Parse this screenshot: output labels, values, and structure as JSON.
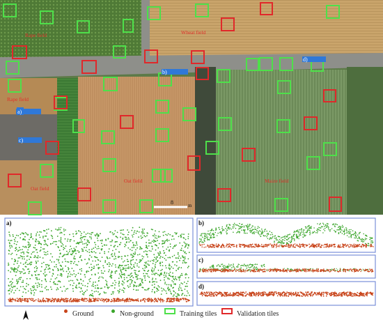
{
  "map": {
    "field_labels": {
      "top_left": "Rape field",
      "top_right": "Wheat field",
      "left_middle": "Rape field",
      "center": "Oat field",
      "right": "Maize field",
      "bottom_left": "Oat field"
    },
    "scale_label": "8",
    "scale_unit": "m",
    "callouts": [
      "a)",
      "b)",
      "c)",
      "d)"
    ]
  },
  "panels": {
    "a": {
      "label": "a)"
    },
    "b": {
      "label": "b)"
    },
    "c": {
      "label": "c)"
    },
    "d": {
      "label": "d)"
    }
  },
  "legend": {
    "ground": "Ground",
    "non_ground": "Non-ground",
    "training": "Training  tiles",
    "validation": "Validation tiles"
  },
  "colors": {
    "ground": "#c8441a",
    "non_ground": "#3aa52a",
    "training_border": "#4ee04a",
    "validation_border": "#e0282a",
    "callout_blue": "#2f78d8",
    "panel_border": "#7a8fd8"
  }
}
